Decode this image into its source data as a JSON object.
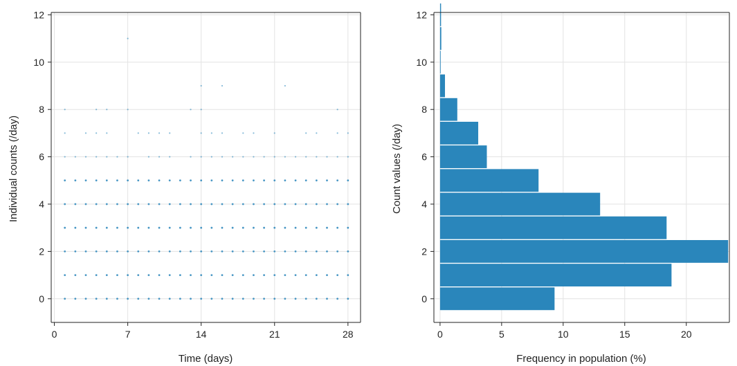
{
  "chart_data": [
    {
      "type": "scatter",
      "title": "",
      "xlabel": "Time (days)",
      "ylabel": "Individual counts (/day)",
      "xlim": [
        -0.3,
        29.2
      ],
      "ylim": [
        -1,
        12.1
      ],
      "xticks": [
        0,
        7,
        14,
        21,
        28
      ],
      "yticks": [
        0,
        2,
        4,
        6,
        8,
        10,
        12
      ],
      "grid": true,
      "color": "#2a86bb",
      "days": [
        1,
        2,
        3,
        4,
        5,
        6,
        7,
        8,
        9,
        10,
        11,
        12,
        13,
        14,
        15,
        16,
        17,
        18,
        19,
        20,
        21,
        22,
        23,
        24,
        25,
        26,
        27,
        28
      ],
      "day_counts": [
        [
          0,
          1,
          2,
          3,
          4,
          5,
          6,
          7,
          8
        ],
        [
          0,
          1,
          2,
          3,
          4,
          5,
          6
        ],
        [
          0,
          1,
          2,
          3,
          4,
          5,
          6,
          7
        ],
        [
          0,
          1,
          2,
          3,
          4,
          5,
          6,
          7,
          8
        ],
        [
          0,
          1,
          2,
          3,
          4,
          5,
          6,
          7,
          8
        ],
        [
          0,
          1,
          2,
          3,
          4,
          5,
          6
        ],
        [
          0,
          1,
          2,
          3,
          4,
          5,
          6,
          8,
          11
        ],
        [
          0,
          1,
          2,
          3,
          4,
          5,
          7
        ],
        [
          0,
          1,
          2,
          3,
          4,
          5,
          6,
          7
        ],
        [
          0,
          1,
          2,
          3,
          4,
          5,
          6,
          7
        ],
        [
          0,
          1,
          2,
          3,
          4,
          5,
          6,
          7
        ],
        [
          0,
          1,
          2,
          3,
          4,
          5
        ],
        [
          0,
          1,
          2,
          3,
          4,
          5,
          6,
          8
        ],
        [
          0,
          1,
          2,
          3,
          4,
          5,
          6,
          7,
          8,
          9
        ],
        [
          0,
          1,
          2,
          3,
          4,
          5,
          6,
          7
        ],
        [
          0,
          1,
          2,
          3,
          4,
          5,
          6,
          7,
          9
        ],
        [
          0,
          1,
          2,
          3,
          4,
          5,
          6
        ],
        [
          0,
          1,
          2,
          3,
          4,
          5,
          6,
          7
        ],
        [
          0,
          1,
          2,
          3,
          4,
          5,
          6,
          7
        ],
        [
          0,
          1,
          2,
          3,
          4,
          5,
          6
        ],
        [
          0,
          1,
          2,
          3,
          4,
          5,
          6,
          7
        ],
        [
          0,
          1,
          2,
          3,
          4,
          5,
          6,
          9
        ],
        [
          0,
          1,
          2,
          3,
          4,
          5,
          6
        ],
        [
          0,
          1,
          2,
          3,
          4,
          5,
          6,
          7
        ],
        [
          0,
          1,
          2,
          3,
          4,
          5,
          6,
          7
        ],
        [
          0,
          1,
          2,
          3,
          4,
          5,
          6
        ],
        [
          0,
          1,
          2,
          3,
          4,
          5,
          6,
          7,
          8
        ],
        [
          0,
          1,
          2,
          3,
          4,
          5,
          6,
          7
        ]
      ]
    },
    {
      "type": "bar",
      "orientation": "horizontal",
      "title": "",
      "xlabel": "Frequency in population (%)",
      "ylabel": "Count values (/day)",
      "xlim": [
        -0.5,
        23.5
      ],
      "ylim": [
        -1,
        12.1
      ],
      "xticks": [
        0,
        5,
        10,
        15,
        20
      ],
      "yticks": [
        0,
        2,
        4,
        6,
        8,
        10,
        12
      ],
      "grid": true,
      "color": "#2a86bb",
      "categories": [
        0,
        1,
        2,
        3,
        4,
        5,
        6,
        7,
        8,
        9,
        10,
        11,
        12
      ],
      "values": [
        9.3,
        18.8,
        23.4,
        18.4,
        13.0,
        8.0,
        3.8,
        3.1,
        1.4,
        0.4,
        0.05,
        0.1,
        0.08
      ]
    }
  ]
}
